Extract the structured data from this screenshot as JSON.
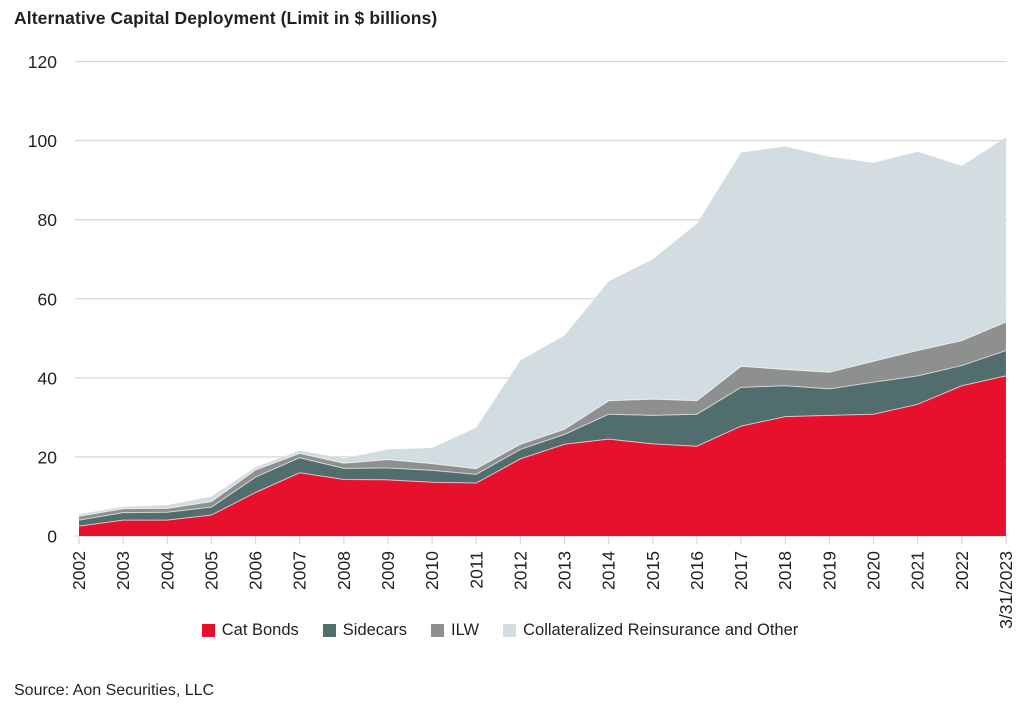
{
  "title": "Alternative Capital Deployment (Limit in $ billions)",
  "source": "Source: Aon Securities, LLC",
  "colors": {
    "text": "#231f20",
    "gridline": "#d9d9d9",
    "background": "#ffffff"
  },
  "chart_data": {
    "type": "area",
    "stacked": true,
    "title": "Alternative Capital Deployment (Limit in $ billions)",
    "xlabel": "",
    "ylabel": "",
    "ylim": [
      0,
      120
    ],
    "yticks": [
      0,
      20,
      40,
      60,
      80,
      100,
      120
    ],
    "grid": true,
    "legend_position": "bottom",
    "categories": [
      "2002",
      "2003",
      "2004",
      "2005",
      "2006",
      "2007",
      "2008",
      "2009",
      "2010",
      "2011",
      "2012",
      "2013",
      "2014",
      "2015",
      "2016",
      "2017",
      "2018",
      "2019",
      "2020",
      "2021",
      "2022",
      "3/31/2023"
    ],
    "series": [
      {
        "name": "Cat Bonds",
        "color": "#e8112d",
        "values": [
          2.5,
          4.0,
          4.0,
          5.3,
          11.0,
          16.0,
          14.3,
          14.2,
          13.6,
          13.4,
          19.5,
          23.2,
          24.5,
          23.3,
          22.7,
          27.8,
          30.2,
          30.5,
          30.8,
          33.3,
          38.0,
          40.5
        ]
      },
      {
        "name": "Sidecars",
        "color": "#516d6e",
        "values": [
          1.5,
          1.9,
          2.0,
          2.0,
          3.9,
          3.8,
          2.8,
          3.0,
          3.0,
          2.2,
          2.4,
          2.5,
          6.3,
          7.2,
          8.1,
          9.8,
          7.8,
          6.7,
          8.1,
          7.2,
          5.1,
          6.4
        ]
      },
      {
        "name": "ILW",
        "color": "#8e9090",
        "values": [
          1.0,
          1.0,
          1.0,
          1.4,
          1.8,
          1.1,
          1.3,
          2.1,
          1.7,
          1.4,
          1.3,
          1.3,
          3.4,
          4.1,
          3.4,
          5.3,
          4.1,
          4.2,
          5.3,
          6.4,
          6.3,
          7.2
        ]
      },
      {
        "name": "Collateralized Reinsurance and Other",
        "color": "#d2dde1",
        "values": [
          0.5,
          0.5,
          0.8,
          1.3,
          0.7,
          0.7,
          1.2,
          2.6,
          4.0,
          10.4,
          21.2,
          23.7,
          30.2,
          35.4,
          44.8,
          54.1,
          56.4,
          54.5,
          50.2,
          50.3,
          44.2,
          46.7
        ]
      }
    ]
  }
}
